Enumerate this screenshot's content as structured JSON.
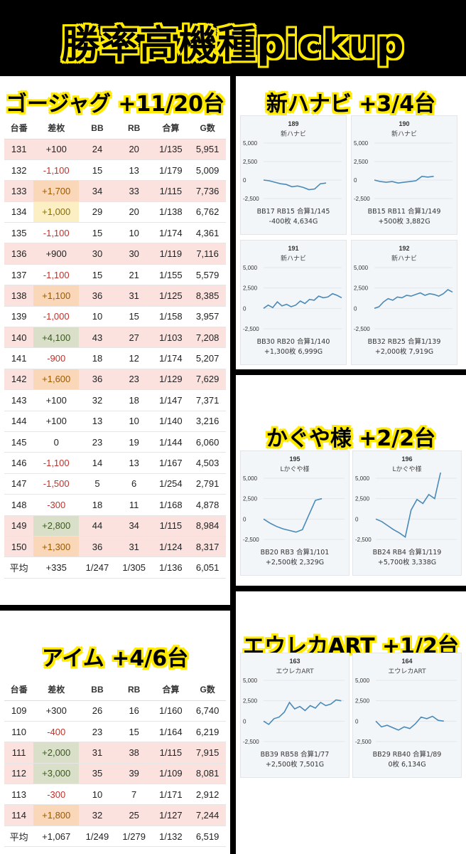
{
  "title": "勝率高機種pickup",
  "gojag": {
    "title": "ゴージャグ +11/20台",
    "headers": [
      "台番",
      "差枚",
      "BB",
      "RB",
      "合算",
      "G数"
    ],
    "rows": [
      {
        "no": "131",
        "diff": "+100",
        "bb": "24",
        "rb": "20",
        "total": "1/135",
        "g": "5,951",
        "row": "hl",
        "cell": ""
      },
      {
        "no": "132",
        "diff": "-1,100",
        "bb": "15",
        "rb": "13",
        "total": "1/179",
        "g": "5,009",
        "row": "",
        "cell": "neg"
      },
      {
        "no": "133",
        "diff": "+1,700",
        "bb": "34",
        "rb": "33",
        "total": "1/115",
        "g": "7,736",
        "row": "hl",
        "cell": "orange"
      },
      {
        "no": "134",
        "diff": "+1,000",
        "bb": "29",
        "rb": "20",
        "total": "1/138",
        "g": "6,762",
        "row": "",
        "cell": "yellow"
      },
      {
        "no": "135",
        "diff": "-1,100",
        "bb": "15",
        "rb": "10",
        "total": "1/174",
        "g": "4,361",
        "row": "",
        "cell": "neg"
      },
      {
        "no": "136",
        "diff": "+900",
        "bb": "30",
        "rb": "30",
        "total": "1/119",
        "g": "7,116",
        "row": "hl",
        "cell": ""
      },
      {
        "no": "137",
        "diff": "-1,100",
        "bb": "15",
        "rb": "21",
        "total": "1/155",
        "g": "5,579",
        "row": "",
        "cell": "neg"
      },
      {
        "no": "138",
        "diff": "+1,100",
        "bb": "36",
        "rb": "31",
        "total": "1/125",
        "g": "8,385",
        "row": "hl",
        "cell": "orange"
      },
      {
        "no": "139",
        "diff": "-1,000",
        "bb": "10",
        "rb": "15",
        "total": "1/158",
        "g": "3,957",
        "row": "",
        "cell": "neg"
      },
      {
        "no": "140",
        "diff": "+4,100",
        "bb": "43",
        "rb": "27",
        "total": "1/103",
        "g": "7,208",
        "row": "hl",
        "cell": "green"
      },
      {
        "no": "141",
        "diff": "-900",
        "bb": "18",
        "rb": "12",
        "total": "1/174",
        "g": "5,207",
        "row": "",
        "cell": "neg"
      },
      {
        "no": "142",
        "diff": "+1,600",
        "bb": "36",
        "rb": "23",
        "total": "1/129",
        "g": "7,629",
        "row": "hl",
        "cell": "orange"
      },
      {
        "no": "143",
        "diff": "+100",
        "bb": "32",
        "rb": "18",
        "total": "1/147",
        "g": "7,371",
        "row": "",
        "cell": ""
      },
      {
        "no": "144",
        "diff": "+100",
        "bb": "13",
        "rb": "10",
        "total": "1/140",
        "g": "3,216",
        "row": "",
        "cell": ""
      },
      {
        "no": "145",
        "diff": "0",
        "bb": "23",
        "rb": "19",
        "total": "1/144",
        "g": "6,060",
        "row": "",
        "cell": ""
      },
      {
        "no": "146",
        "diff": "-1,100",
        "bb": "14",
        "rb": "13",
        "total": "1/167",
        "g": "4,503",
        "row": "",
        "cell": "neg"
      },
      {
        "no": "147",
        "diff": "-1,500",
        "bb": "5",
        "rb": "6",
        "total": "1/254",
        "g": "2,791",
        "row": "",
        "cell": "neg"
      },
      {
        "no": "148",
        "diff": "-300",
        "bb": "18",
        "rb": "11",
        "total": "1/168",
        "g": "4,878",
        "row": "",
        "cell": "neg"
      },
      {
        "no": "149",
        "diff": "+2,800",
        "bb": "44",
        "rb": "34",
        "total": "1/115",
        "g": "8,984",
        "row": "hl",
        "cell": "green"
      },
      {
        "no": "150",
        "diff": "+1,300",
        "bb": "36",
        "rb": "31",
        "total": "1/124",
        "g": "8,317",
        "row": "hl",
        "cell": "orange"
      }
    ],
    "avg": {
      "no": "平均",
      "diff": "+335",
      "bb": "1/247",
      "rb": "1/305",
      "total": "1/136",
      "g": "6,051"
    }
  },
  "aim": {
    "title": "アイム +4/6台",
    "headers": [
      "台番",
      "差枚",
      "BB",
      "RB",
      "合算",
      "G数"
    ],
    "rows": [
      {
        "no": "109",
        "diff": "+300",
        "bb": "26",
        "rb": "16",
        "total": "1/160",
        "g": "6,740",
        "row": "",
        "cell": ""
      },
      {
        "no": "110",
        "diff": "-400",
        "bb": "23",
        "rb": "15",
        "total": "1/164",
        "g": "6,219",
        "row": "",
        "cell": "neg"
      },
      {
        "no": "111",
        "diff": "+2,000",
        "bb": "31",
        "rb": "38",
        "total": "1/115",
        "g": "7,915",
        "row": "hl",
        "cell": "green"
      },
      {
        "no": "112",
        "diff": "+3,000",
        "bb": "35",
        "rb": "39",
        "total": "1/109",
        "g": "8,081",
        "row": "hl",
        "cell": "green"
      },
      {
        "no": "113",
        "diff": "-300",
        "bb": "10",
        "rb": "7",
        "total": "1/171",
        "g": "2,912",
        "row": "",
        "cell": "neg"
      },
      {
        "no": "114",
        "diff": "+1,800",
        "bb": "32",
        "rb": "25",
        "total": "1/127",
        "g": "7,244",
        "row": "hl",
        "cell": "orange"
      }
    ],
    "avg": {
      "no": "平均",
      "diff": "+1,067",
      "bb": "1/249",
      "rb": "1/279",
      "total": "1/132",
      "g": "6,519"
    }
  },
  "hanabi": {
    "title": "新ハナビ +3/4台",
    "cards": [
      {
        "num": "189",
        "name": "新ハナビ",
        "line1": "BB17 RB15 合算1/145",
        "line2": "-400枚 4,634G",
        "yticks": [
          "5,000",
          "2,500",
          "0",
          "-2,500"
        ]
      },
      {
        "num": "190",
        "name": "新ハナビ",
        "line1": "BB15 RB11 合算1/149",
        "line2": "+500枚 3,882G",
        "yticks": [
          "5,000",
          "2,500",
          "0",
          "-2,500"
        ]
      },
      {
        "num": "191",
        "name": "新ハナビ",
        "line1": "BB30 RB20 合算1/140",
        "line2": "+1,300枚 6,999G",
        "yticks": [
          "5,000",
          "2,500",
          "0",
          "-2,500"
        ]
      },
      {
        "num": "192",
        "name": "新ハナビ",
        "line1": "BB32 RB25 合算1/139",
        "line2": "+2,000枚 7,919G",
        "yticks": [
          "5,000",
          "2,500",
          "0",
          "-2,500"
        ]
      }
    ]
  },
  "kaguya": {
    "title": "かぐや様 +2/2台",
    "cards": [
      {
        "num": "195",
        "name": "Lかぐや様",
        "line1": "BB20 RB3 合算1/101",
        "line2": "+2,500枚 2,329G",
        "yticks": [
          "5,000",
          "2,500",
          "0",
          "-2,500"
        ]
      },
      {
        "num": "196",
        "name": "Lかぐや様",
        "line1": "BB24 RB4 合算1/119",
        "line2": "+5,700枚 3,338G",
        "yticks": [
          "5,000",
          "2,500",
          "0",
          "-2,500"
        ]
      }
    ]
  },
  "eureka": {
    "title": "エウレカART +1/2台",
    "cards": [
      {
        "num": "163",
        "name": "エウレカART",
        "line1": "BB39 RB58 合算1/77",
        "line2": "+2,500枚 7,501G",
        "yticks": [
          "5,000",
          "2,500",
          "0",
          "-2,500"
        ]
      },
      {
        "num": "164",
        "name": "エウレカART",
        "line1": "BB29 RB40 合算1/89",
        "line2": "0枚 6,134G",
        "yticks": [
          "5,000",
          "2,500",
          "0",
          "-2,500"
        ]
      }
    ]
  },
  "colors": {
    "title_yellow": "#ffea00",
    "line": "#4a8ab8",
    "row_highlight": "#fbe2df",
    "neg": "#c0312b"
  },
  "chart_data": [
    {
      "type": "line",
      "series": [
        {
          "values": [
            0,
            -100,
            -300,
            -500,
            -600,
            -900,
            -800,
            -1000,
            -1300,
            -1200,
            -500,
            -400
          ]
        }
      ],
      "ylim": [
        -2500,
        5000
      ]
    },
    {
      "type": "line",
      "series": [
        {
          "values": [
            0,
            -200,
            -300,
            -200,
            -400,
            -300,
            -200,
            -100,
            500,
            400,
            500
          ]
        }
      ],
      "ylim": [
        -2500,
        5000
      ]
    },
    {
      "type": "line",
      "series": [
        {
          "values": [
            0,
            400,
            100,
            800,
            300,
            500,
            200,
            400,
            900,
            600,
            1100,
            1000,
            1500,
            1300,
            1400,
            1800,
            1600,
            1300
          ]
        }
      ],
      "ylim": [
        -2500,
        5000
      ]
    },
    {
      "type": "line",
      "series": [
        {
          "values": [
            0,
            200,
            800,
            1200,
            1000,
            1400,
            1300,
            1600,
            1500,
            1700,
            1900,
            1600,
            1800,
            1700,
            1500,
            1800,
            2300,
            2000
          ]
        }
      ],
      "ylim": [
        -2500,
        5000
      ]
    },
    {
      "type": "line",
      "series": [
        {
          "values": [
            0,
            -500,
            -900,
            -1200,
            -1400,
            -1600,
            -1300,
            500,
            2300,
            2500
          ]
        }
      ],
      "ylim": [
        -2500,
        5000
      ]
    },
    {
      "type": "line",
      "series": [
        {
          "values": [
            0,
            -300,
            -800,
            -1300,
            -1700,
            -2200,
            1100,
            2400,
            1900,
            3000,
            2500,
            5700
          ]
        }
      ],
      "ylim": [
        -2500,
        5000
      ]
    },
    {
      "type": "line",
      "series": [
        {
          "values": [
            0,
            -400,
            300,
            500,
            1100,
            2300,
            1500,
            1800,
            1300,
            1900,
            1600,
            2300,
            1900,
            2100,
            2600,
            2500
          ]
        }
      ],
      "ylim": [
        -2500,
        5000
      ]
    },
    {
      "type": "line",
      "series": [
        {
          "values": [
            0,
            -700,
            -500,
            -800,
            -1100,
            -700,
            -900,
            -300,
            500,
            300,
            600,
            100,
            0
          ]
        }
      ],
      "ylim": [
        -2500,
        5000
      ]
    }
  ]
}
